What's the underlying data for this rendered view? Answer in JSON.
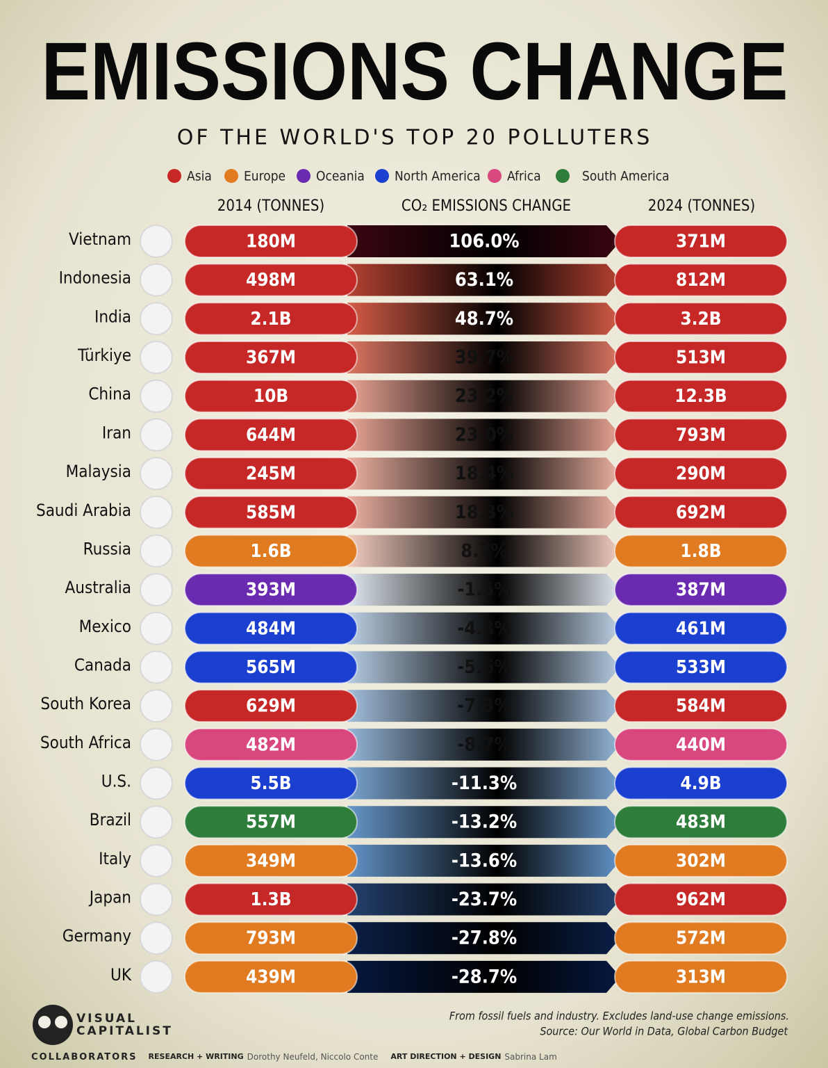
{
  "header": {
    "title": "EMISSIONS CHANGE",
    "subtitle": "OF THE WORLD'S TOP 20 POLLUTERS"
  },
  "legend": [
    {
      "name": "Asia",
      "color": "#c62828"
    },
    {
      "name": "Europe",
      "color": "#e07b22"
    },
    {
      "name": "Oceania",
      "color": "#6a2bb0"
    },
    {
      "name": "North America",
      "color": "#1b3fcf"
    },
    {
      "name": "Africa",
      "color": "#d9477f"
    },
    {
      "name": "South America",
      "color": "#2e7d3a"
    }
  ],
  "columns": [
    "2014 (TONNES)",
    "CO₂ EMISSIONS CHANGE",
    "2024 (TONNES)"
  ],
  "rows": [
    {
      "country": "Vietnam",
      "region": "Asia",
      "y2014": "180M",
      "change": "106.0%",
      "y2024": "371M"
    },
    {
      "country": "Indonesia",
      "region": "Asia",
      "y2014": "498M",
      "change": "63.1%",
      "y2024": "812M"
    },
    {
      "country": "India",
      "region": "Asia",
      "y2014": "2.1B",
      "change": "48.7%",
      "y2024": "3.2B"
    },
    {
      "country": "Türkiye",
      "region": "Asia",
      "y2014": "367M",
      "change": "39.7%",
      "y2024": "513M"
    },
    {
      "country": "China",
      "region": "Asia",
      "y2014": "10B",
      "change": "23.2%",
      "y2024": "12.3B"
    },
    {
      "country": "Iran",
      "region": "Asia",
      "y2014": "644M",
      "change": "23.0%",
      "y2024": "793M"
    },
    {
      "country": "Malaysia",
      "region": "Asia",
      "y2014": "245M",
      "change": "18.4%",
      "y2024": "290M"
    },
    {
      "country": "Saudi Arabia",
      "region": "Asia",
      "y2014": "585M",
      "change": "18.3%",
      "y2024": "692M"
    },
    {
      "country": "Russia",
      "region": "Europe",
      "y2014": "1.6B",
      "change": "8.7%",
      "y2024": "1.8B"
    },
    {
      "country": "Australia",
      "region": "Oceania",
      "y2014": "393M",
      "change": "-1.5%",
      "y2024": "387M"
    },
    {
      "country": "Mexico",
      "region": "North America",
      "y2014": "484M",
      "change": "-4.8%",
      "y2024": "461M"
    },
    {
      "country": "Canada",
      "region": "North America",
      "y2014": "565M",
      "change": "-5.6%",
      "y2024": "533M"
    },
    {
      "country": "South Korea",
      "region": "Asia",
      "y2014": "629M",
      "change": "-7.3%",
      "y2024": "584M"
    },
    {
      "country": "South Africa",
      "region": "Africa",
      "y2014": "482M",
      "change": "-8.7%",
      "y2024": "440M"
    },
    {
      "country": "U.S.",
      "region": "North America",
      "y2014": "5.5B",
      "change": "-11.3%",
      "y2024": "4.9B"
    },
    {
      "country": "Brazil",
      "region": "South America",
      "y2014": "557M",
      "change": "-13.2%",
      "y2024": "483M"
    },
    {
      "country": "Italy",
      "region": "Europe",
      "y2014": "349M",
      "change": "-13.6%",
      "y2024": "302M"
    },
    {
      "country": "Japan",
      "region": "Asia",
      "y2014": "1.3B",
      "change": "-23.7%",
      "y2024": "962M"
    },
    {
      "country": "Germany",
      "region": "Europe",
      "y2014": "793M",
      "change": "-27.8%",
      "y2024": "572M"
    },
    {
      "country": "UK",
      "region": "Europe",
      "y2014": "439M",
      "change": "-28.7%",
      "y2024": "313M"
    }
  ],
  "footer": {
    "logo": [
      "VISUAL",
      "CAPITALIST"
    ],
    "notes": [
      "From fossil fuels and industry. Excludes land-use change emissions.",
      "Source: Our World in Data, Global Carbon Budget"
    ],
    "collaborators": {
      "label": "COLLABORATORS",
      "roles": [
        {
          "role": "RESEARCH + WRITING",
          "names": "Dorothy Neufeld, Niccolo Conte"
        },
        {
          "role": "ART DIRECTION + DESIGN",
          "names": "Sabrina Lam"
        }
      ]
    }
  }
}
